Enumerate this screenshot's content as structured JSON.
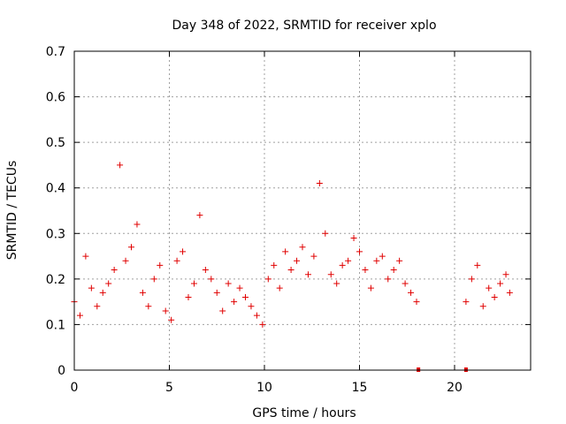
{
  "chart_data": {
    "type": "scatter",
    "title": "Day 348 of 2022, SRMTID for receiver xplo",
    "xlabel": "GPS time / hours",
    "ylabel": "SRMTID / TECUs",
    "xlim": [
      0,
      24
    ],
    "ylim": [
      0,
      0.7
    ],
    "xticks": [
      0,
      5,
      10,
      15,
      20
    ],
    "yticks": [
      0,
      0.1,
      0.2,
      0.3,
      0.4,
      0.5,
      0.6,
      0.7
    ],
    "xtick_labels": [
      "0",
      "5",
      "10",
      "15",
      "20"
    ],
    "ytick_labels": [
      "0",
      "0.1",
      "0.2",
      "0.3",
      "0.4",
      "0.5",
      "0.6",
      "0.7"
    ],
    "grid": true,
    "marker": "+",
    "color": "#e00000",
    "gap_markers": [
      {
        "x": 18.1,
        "y": 0
      },
      {
        "x": 20.6,
        "y": 0
      }
    ],
    "series": [
      {
        "name": "SRMTID",
        "x": [
          0.0,
          0.3,
          0.6,
          0.9,
          1.2,
          1.5,
          1.8,
          2.1,
          2.4,
          2.7,
          3.0,
          3.3,
          3.6,
          3.9,
          4.2,
          4.5,
          4.8,
          5.1,
          5.4,
          5.7,
          6.0,
          6.3,
          6.6,
          6.9,
          7.2,
          7.5,
          7.8,
          8.1,
          8.4,
          8.7,
          9.0,
          9.3,
          9.6,
          9.9,
          10.2,
          10.5,
          10.8,
          11.1,
          11.4,
          11.7,
          12.0,
          12.3,
          12.6,
          12.9,
          13.2,
          13.5,
          13.8,
          14.1,
          14.4,
          14.7,
          15.0,
          15.3,
          15.6,
          15.9,
          16.2,
          16.5,
          16.8,
          17.1,
          17.4,
          17.7,
          18.0,
          20.6,
          20.9,
          21.2,
          21.5,
          21.8,
          22.1,
          22.4,
          22.7,
          22.9
        ],
        "y": [
          0.15,
          0.12,
          0.25,
          0.18,
          0.14,
          0.17,
          0.19,
          0.22,
          0.45,
          0.24,
          0.27,
          0.32,
          0.17,
          0.14,
          0.2,
          0.23,
          0.13,
          0.11,
          0.24,
          0.26,
          0.16,
          0.19,
          0.34,
          0.22,
          0.2,
          0.17,
          0.13,
          0.19,
          0.15,
          0.18,
          0.16,
          0.14,
          0.12,
          0.1,
          0.2,
          0.23,
          0.18,
          0.26,
          0.22,
          0.24,
          0.27,
          0.21,
          0.25,
          0.41,
          0.3,
          0.21,
          0.19,
          0.23,
          0.24,
          0.29,
          0.26,
          0.22,
          0.18,
          0.24,
          0.25,
          0.2,
          0.22,
          0.24,
          0.19,
          0.17,
          0.15,
          0.15,
          0.2,
          0.23,
          0.14,
          0.18,
          0.16,
          0.19,
          0.21,
          0.17
        ]
      }
    ]
  }
}
